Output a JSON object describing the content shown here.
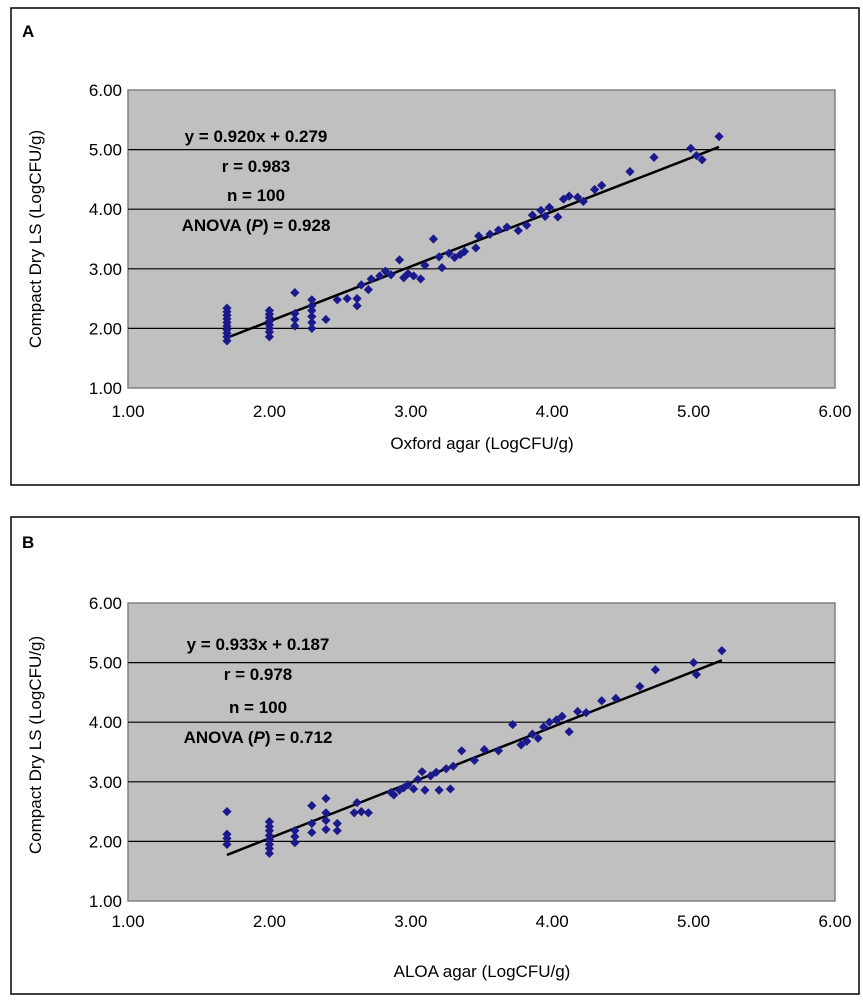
{
  "chart_data": [
    {
      "type": "scatter",
      "panel_label": "A",
      "xlabel": "Oxford agar (LogCFU/g)",
      "ylabel": "Compact Dry LS (LogCFU/g)",
      "xlim": [
        1.0,
        6.0
      ],
      "ylim": [
        1.0,
        6.0
      ],
      "x_ticks": [
        "1.00",
        "2.00",
        "3.00",
        "4.00",
        "5.00",
        "6.00"
      ],
      "y_ticks": [
        "1.00",
        "2.00",
        "3.00",
        "4.00",
        "5.00",
        "6.00"
      ],
      "grid": true,
      "marker_color": "#1a1a8c",
      "plot_background": "#c0c0c0",
      "annotation": {
        "line1": "y = 0.920x + 0.279",
        "line2": "r = 0.983",
        "line3": "n = 100",
        "line4_prefix": "ANOVA (",
        "line4_italic": "P",
        "line4_suffix": ") = 0.928"
      },
      "trendline": {
        "slope": 0.92,
        "intercept": 0.279,
        "x_range": [
          1.7,
          5.18
        ]
      },
      "points": [
        [
          1.7,
          1.79
        ],
        [
          1.7,
          1.86
        ],
        [
          1.7,
          1.92
        ],
        [
          1.7,
          1.98
        ],
        [
          1.7,
          2.04
        ],
        [
          1.7,
          2.1
        ],
        [
          1.7,
          2.16
        ],
        [
          1.7,
          2.22
        ],
        [
          1.7,
          2.28
        ],
        [
          1.7,
          2.34
        ],
        [
          2.0,
          1.86
        ],
        [
          2.0,
          1.94
        ],
        [
          2.0,
          2.0
        ],
        [
          2.0,
          2.06
        ],
        [
          2.0,
          2.12
        ],
        [
          2.0,
          2.18
        ],
        [
          2.0,
          2.24
        ],
        [
          2.0,
          2.3
        ],
        [
          2.18,
          2.04
        ],
        [
          2.18,
          2.15
        ],
        [
          2.18,
          2.25
        ],
        [
          2.18,
          2.6
        ],
        [
          2.3,
          2.0
        ],
        [
          2.3,
          2.1
        ],
        [
          2.3,
          2.2
        ],
        [
          2.3,
          2.3
        ],
        [
          2.3,
          2.38
        ],
        [
          2.3,
          2.48
        ],
        [
          2.4,
          2.15
        ],
        [
          2.48,
          2.48
        ],
        [
          2.55,
          2.5
        ],
        [
          2.62,
          2.38
        ],
        [
          2.62,
          2.5
        ],
        [
          2.65,
          2.73
        ],
        [
          2.7,
          2.65
        ],
        [
          2.72,
          2.83
        ],
        [
          2.78,
          2.88
        ],
        [
          2.82,
          2.96
        ],
        [
          2.86,
          2.9
        ],
        [
          2.92,
          3.15
        ],
        [
          2.95,
          2.85
        ],
        [
          2.98,
          2.92
        ],
        [
          3.02,
          2.88
        ],
        [
          3.07,
          2.83
        ],
        [
          3.1,
          3.06
        ],
        [
          3.16,
          3.5
        ],
        [
          3.2,
          3.2
        ],
        [
          3.22,
          3.02
        ],
        [
          3.27,
          3.26
        ],
        [
          3.31,
          3.19
        ],
        [
          3.35,
          3.24
        ],
        [
          3.38,
          3.29
        ],
        [
          3.46,
          3.35
        ],
        [
          3.48,
          3.55
        ],
        [
          3.56,
          3.58
        ],
        [
          3.62,
          3.65
        ],
        [
          3.68,
          3.7
        ],
        [
          3.76,
          3.64
        ],
        [
          3.82,
          3.73
        ],
        [
          3.86,
          3.9
        ],
        [
          3.92,
          3.98
        ],
        [
          3.95,
          3.88
        ],
        [
          3.98,
          4.03
        ],
        [
          4.04,
          3.87
        ],
        [
          4.08,
          4.17
        ],
        [
          4.12,
          4.22
        ],
        [
          4.18,
          4.2
        ],
        [
          4.22,
          4.13
        ],
        [
          4.3,
          4.33
        ],
        [
          4.35,
          4.4
        ],
        [
          4.55,
          4.63
        ],
        [
          4.72,
          4.87
        ],
        [
          4.98,
          5.02
        ],
        [
          5.02,
          4.9
        ],
        [
          5.06,
          4.83
        ],
        [
          5.18,
          5.22
        ]
      ]
    },
    {
      "type": "scatter",
      "panel_label": "B",
      "xlabel": "ALOA agar (LogCFU/g)",
      "ylabel": "Compact Dry LS (LogCFU/g)",
      "xlim": [
        1.0,
        6.0
      ],
      "ylim": [
        1.0,
        6.0
      ],
      "x_ticks": [
        "1.00",
        "2.00",
        "3.00",
        "4.00",
        "5.00",
        "6.00"
      ],
      "y_ticks": [
        "1.00",
        "2.00",
        "3.00",
        "4.00",
        "5.00",
        "6.00"
      ],
      "grid": true,
      "marker_color": "#1a1a8c",
      "plot_background": "#c0c0c0",
      "annotation": {
        "line1": "y = 0.933x + 0.187",
        "line2": "r = 0.978",
        "line3": "n = 100",
        "line4_prefix": "ANOVA (",
        "line4_italic": "P",
        "line4_suffix": ") = 0.712"
      },
      "trendline": {
        "slope": 0.933,
        "intercept": 0.187,
        "x_range": [
          1.7,
          5.2
        ]
      },
      "points": [
        [
          1.7,
          1.95
        ],
        [
          1.7,
          2.05
        ],
        [
          1.7,
          2.12
        ],
        [
          1.7,
          2.5
        ],
        [
          2.0,
          1.8
        ],
        [
          2.0,
          1.88
        ],
        [
          2.0,
          1.95
        ],
        [
          2.0,
          2.03
        ],
        [
          2.0,
          2.1
        ],
        [
          2.0,
          2.18
        ],
        [
          2.0,
          2.25
        ],
        [
          2.0,
          2.33
        ],
        [
          2.18,
          1.98
        ],
        [
          2.18,
          2.08
        ],
        [
          2.18,
          2.18
        ],
        [
          2.3,
          2.15
        ],
        [
          2.3,
          2.3
        ],
        [
          2.3,
          2.6
        ],
        [
          2.4,
          2.2
        ],
        [
          2.4,
          2.35
        ],
        [
          2.4,
          2.48
        ],
        [
          2.4,
          2.72
        ],
        [
          2.48,
          2.18
        ],
        [
          2.48,
          2.3
        ],
        [
          2.6,
          2.48
        ],
        [
          2.62,
          2.65
        ],
        [
          2.65,
          2.5
        ],
        [
          2.7,
          2.48
        ],
        [
          2.86,
          2.82
        ],
        [
          2.88,
          2.78
        ],
        [
          2.92,
          2.86
        ],
        [
          2.95,
          2.9
        ],
        [
          2.98,
          2.95
        ],
        [
          3.02,
          2.88
        ],
        [
          3.05,
          3.04
        ],
        [
          3.08,
          3.17
        ],
        [
          3.1,
          2.86
        ],
        [
          3.14,
          3.1
        ],
        [
          3.18,
          3.16
        ],
        [
          3.2,
          2.86
        ],
        [
          3.25,
          3.22
        ],
        [
          3.28,
          2.88
        ],
        [
          3.3,
          3.26
        ],
        [
          3.36,
          3.52
        ],
        [
          3.45,
          3.36
        ],
        [
          3.52,
          3.54
        ],
        [
          3.62,
          3.52
        ],
        [
          3.72,
          3.96
        ],
        [
          3.78,
          3.62
        ],
        [
          3.82,
          3.68
        ],
        [
          3.86,
          3.8
        ],
        [
          3.9,
          3.73
        ],
        [
          3.94,
          3.92
        ],
        [
          3.98,
          4.0
        ],
        [
          4.03,
          4.04
        ],
        [
          4.07,
          4.1
        ],
        [
          4.12,
          3.84
        ],
        [
          4.18,
          4.18
        ],
        [
          4.24,
          4.16
        ],
        [
          4.35,
          4.36
        ],
        [
          4.45,
          4.4
        ],
        [
          4.62,
          4.6
        ],
        [
          4.73,
          4.88
        ],
        [
          5.0,
          5.0
        ],
        [
          5.02,
          4.8
        ],
        [
          5.2,
          5.2
        ]
      ]
    }
  ]
}
